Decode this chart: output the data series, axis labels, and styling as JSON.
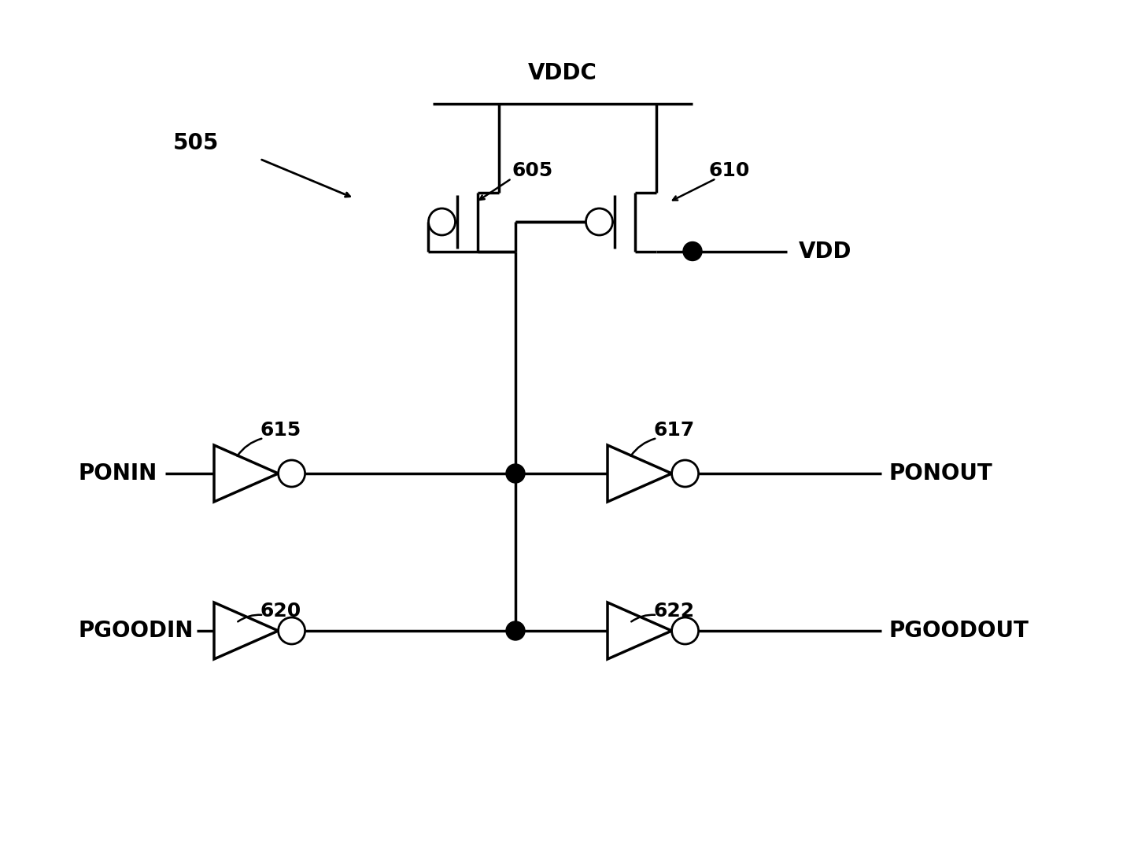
{
  "bg_color": "#ffffff",
  "lw": 2.5,
  "lw_thin": 2.0,
  "vddc_label": "VDDC",
  "vdd_label": "VDD",
  "ponin_label": "PONIN",
  "ponout_label": "PONOUT",
  "pgoodin_label": "PGOODIN",
  "pgoodout_label": "PGOODOUT",
  "ref_label": "505",
  "label_605": "605",
  "label_610": "610",
  "label_615": "615",
  "label_617": "617",
  "label_620": "620",
  "label_622": "622",
  "font_size_labels": 18,
  "font_size_io": 20,
  "font_size_ref": 20
}
